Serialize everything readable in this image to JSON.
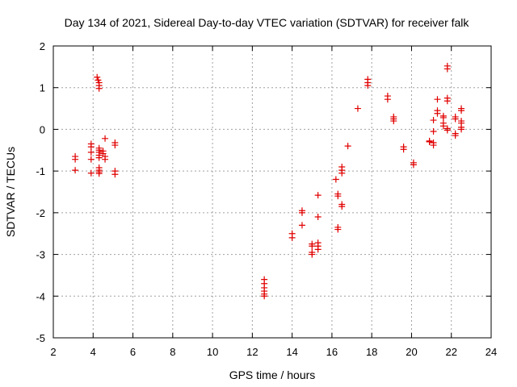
{
  "chart_data": {
    "type": "scatter",
    "title": "Day 134 of 2021, Sidereal Day-to-day VTEC variation (SDTVAR) for receiver falk",
    "xlabel": "GPS time / hours",
    "ylabel": "SDTVAR / TECUs",
    "xlim": [
      2,
      24
    ],
    "ylim": [
      -5,
      2
    ],
    "xticks": [
      2,
      4,
      6,
      8,
      10,
      12,
      14,
      16,
      18,
      20,
      22,
      24
    ],
    "yticks": [
      -5,
      -4,
      -3,
      -2,
      -1,
      0,
      1,
      2
    ],
    "grid": true,
    "marker": "+",
    "series": [
      {
        "name": "SDTVAR",
        "color": "#e00000",
        "points": [
          [
            3.1,
            -0.65
          ],
          [
            3.1,
            -0.72
          ],
          [
            3.1,
            -0.98
          ],
          [
            3.9,
            -0.35
          ],
          [
            3.9,
            -0.42
          ],
          [
            3.9,
            -0.55
          ],
          [
            3.9,
            -0.72
          ],
          [
            3.9,
            -1.05
          ],
          [
            4.2,
            1.25
          ],
          [
            4.25,
            1.18
          ],
          [
            4.3,
            1.12
          ],
          [
            4.3,
            1.05
          ],
          [
            4.3,
            0.98
          ],
          [
            4.3,
            -0.45
          ],
          [
            4.3,
            -0.5
          ],
          [
            4.3,
            -0.55
          ],
          [
            4.3,
            -0.62
          ],
          [
            4.3,
            -0.68
          ],
          [
            4.3,
            -0.92
          ],
          [
            4.3,
            -0.98
          ],
          [
            4.3,
            -1.02
          ],
          [
            4.3,
            -1.06
          ],
          [
            4.5,
            -0.52
          ],
          [
            4.5,
            -0.58
          ],
          [
            4.6,
            -0.22
          ],
          [
            4.6,
            -0.65
          ],
          [
            4.6,
            -0.72
          ],
          [
            5.1,
            -0.32
          ],
          [
            5.1,
            -0.38
          ],
          [
            5.1,
            -1.0
          ],
          [
            5.1,
            -1.08
          ],
          [
            12.6,
            -3.6
          ],
          [
            12.6,
            -3.7
          ],
          [
            12.6,
            -3.8
          ],
          [
            12.6,
            -3.88
          ],
          [
            12.6,
            -3.95
          ],
          [
            12.6,
            -4.0
          ],
          [
            14.0,
            -2.5
          ],
          [
            14.0,
            -2.6
          ],
          [
            14.5,
            -1.95
          ],
          [
            14.5,
            -2.0
          ],
          [
            14.5,
            -2.3
          ],
          [
            15.0,
            -2.75
          ],
          [
            15.0,
            -2.8
          ],
          [
            15.0,
            -2.95
          ],
          [
            15.0,
            -3.0
          ],
          [
            15.3,
            -1.58
          ],
          [
            15.3,
            -2.1
          ],
          [
            15.3,
            -2.72
          ],
          [
            15.3,
            -2.8
          ],
          [
            15.3,
            -2.88
          ],
          [
            16.2,
            -1.2
          ],
          [
            16.3,
            -1.55
          ],
          [
            16.3,
            -1.6
          ],
          [
            16.3,
            -2.35
          ],
          [
            16.3,
            -2.4
          ],
          [
            16.5,
            -0.9
          ],
          [
            16.5,
            -0.98
          ],
          [
            16.5,
            -1.05
          ],
          [
            16.5,
            -1.8
          ],
          [
            16.5,
            -1.85
          ],
          [
            16.8,
            -0.4
          ],
          [
            17.3,
            0.5
          ],
          [
            17.8,
            1.2
          ],
          [
            17.8,
            1.12
          ],
          [
            17.8,
            1.05
          ],
          [
            18.8,
            0.8
          ],
          [
            18.8,
            0.72
          ],
          [
            19.1,
            0.3
          ],
          [
            19.1,
            0.25
          ],
          [
            19.1,
            0.2
          ],
          [
            19.6,
            -0.42
          ],
          [
            19.6,
            -0.48
          ],
          [
            20.1,
            -0.8
          ],
          [
            20.1,
            -0.85
          ],
          [
            20.9,
            -0.28
          ],
          [
            20.9,
            -0.3
          ],
          [
            21.1,
            0.22
          ],
          [
            21.1,
            -0.05
          ],
          [
            21.1,
            -0.32
          ],
          [
            21.1,
            -0.38
          ],
          [
            21.3,
            0.72
          ],
          [
            21.3,
            0.45
          ],
          [
            21.3,
            0.38
          ],
          [
            21.6,
            0.32
          ],
          [
            21.6,
            0.28
          ],
          [
            21.6,
            0.15
          ],
          [
            21.6,
            0.08
          ],
          [
            21.8,
            1.52
          ],
          [
            21.8,
            1.45
          ],
          [
            21.8,
            0.75
          ],
          [
            21.8,
            0.68
          ],
          [
            21.8,
            0.02
          ],
          [
            21.8,
            -0.02
          ],
          [
            22.2,
            0.3
          ],
          [
            22.2,
            0.25
          ],
          [
            22.2,
            -0.1
          ],
          [
            22.2,
            -0.15
          ],
          [
            22.5,
            0.5
          ],
          [
            22.5,
            0.45
          ],
          [
            22.5,
            0.2
          ],
          [
            22.5,
            0.15
          ],
          [
            22.5,
            0.05
          ],
          [
            22.5,
            0.0
          ]
        ]
      }
    ]
  }
}
